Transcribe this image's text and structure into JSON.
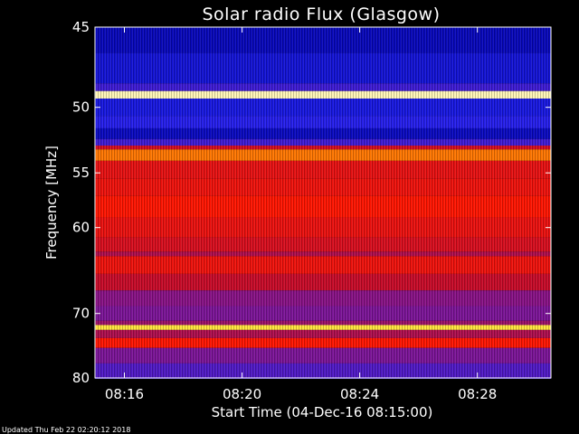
{
  "chart_data": {
    "type": "heatmap",
    "title": "Solar radio Flux (Glasgow)",
    "xlabel": "Start Time (04-Dec-16 08:15:00)",
    "ylabel": "Frequency [MHz]",
    "x_ticks": [
      "08:16",
      "08:20",
      "08:24",
      "08:28"
    ],
    "x_range": [
      "08:15:00",
      "08:30:30"
    ],
    "y_ticks": [
      45,
      50,
      55,
      60,
      70,
      80
    ],
    "y_range": [
      45,
      80
    ],
    "y_scale": "reciprocal",
    "colormap": "black-blue-red-yellow-white",
    "intensity_profile": [
      {
        "freq": 45.0,
        "level": 0.15
      },
      {
        "freq": 46.5,
        "level": 0.2
      },
      {
        "freq": 48.4,
        "level": 0.3
      },
      {
        "freq": 48.9,
        "level": 0.97
      },
      {
        "freq": 49.4,
        "level": 0.22
      },
      {
        "freq": 50.6,
        "level": 0.26
      },
      {
        "freq": 51.5,
        "level": 0.16
      },
      {
        "freq": 52.3,
        "level": 0.3
      },
      {
        "freq": 52.8,
        "level": 0.55
      },
      {
        "freq": 53.1,
        "level": 0.78
      },
      {
        "freq": 54.0,
        "level": 0.6
      },
      {
        "freq": 55.5,
        "level": 0.62
      },
      {
        "freq": 57.0,
        "level": 0.66
      },
      {
        "freq": 59.0,
        "level": 0.61
      },
      {
        "freq": 61.0,
        "level": 0.56
      },
      {
        "freq": 62.5,
        "level": 0.48
      },
      {
        "freq": 63.0,
        "level": 0.62
      },
      {
        "freq": 65.0,
        "level": 0.52
      },
      {
        "freq": 67.0,
        "level": 0.42
      },
      {
        "freq": 69.0,
        "level": 0.4
      },
      {
        "freq": 71.0,
        "level": 0.45
      },
      {
        "freq": 71.6,
        "level": 0.92
      },
      {
        "freq": 72.3,
        "level": 0.48
      },
      {
        "freq": 73.5,
        "level": 0.66
      },
      {
        "freq": 75.0,
        "level": 0.4
      },
      {
        "freq": 77.5,
        "level": 0.33
      },
      {
        "freq": 80.0,
        "level": 0.3
      }
    ],
    "grid": false,
    "legend": "none"
  },
  "footer": {
    "updated": "Updated Thu Feb 22 02:20:12 2018"
  }
}
